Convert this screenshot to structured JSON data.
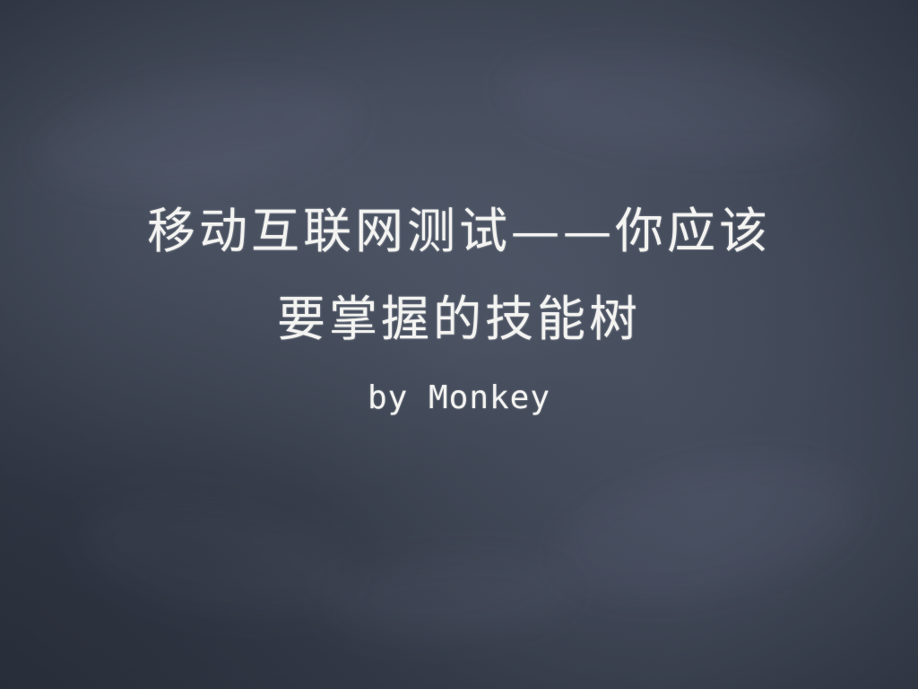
{
  "slide": {
    "title_line_1": "移动互联网测试——你应该",
    "title_line_2": "要掌握的技能树",
    "author": "by Monkey"
  },
  "colors": {
    "background": "#3d4453",
    "text": "#f3f3f1"
  }
}
